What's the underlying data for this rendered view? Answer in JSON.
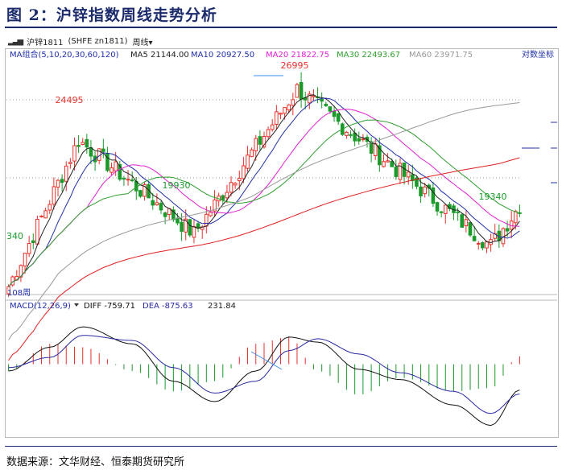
{
  "figure_title": "图 2：沪锌指数周线走势分析",
  "toolbar": {
    "icon": "bars-icon",
    "instrument": "沪锌1811",
    "contract": "(SHFE zn1811)",
    "period": "周线"
  },
  "source_note": "数据来源：文华财经、恒泰期货研究所",
  "colors": {
    "bg": "#ffffff",
    "up": "#e8322c",
    "down": "#1a9a2a",
    "ma5": "#222222",
    "ma10": "#1f2fa8",
    "ma20": "#e020d0",
    "ma30": "#2e9e2e",
    "ma60": "#999999",
    "ma120": "#e02020",
    "diff": "#111111",
    "dea": "#2a2aa0",
    "title": "#1b2a6b",
    "grid": "#999999"
  },
  "chart_data": [
    {
      "type": "candlestick",
      "legend_label": "MA组合(5,10,20,30,60,120)",
      "series": [
        {
          "name": "MA5",
          "value": "21144.00",
          "color": "#222222"
        },
        {
          "name": "MA10",
          "value": "20927.50",
          "color": "#1f2fa8"
        },
        {
          "name": "MA20",
          "value": "21822.75",
          "color": "#e020d0"
        },
        {
          "name": "MA30",
          "value": "22493.67",
          "color": "#2e9e2e"
        },
        {
          "name": "MA60",
          "value": "23971.75",
          "color": "#999999"
        }
      ],
      "scale_label": "对数坐标",
      "bar_count_label": "108周",
      "annotations": [
        {
          "text": "24495",
          "kind": "high"
        },
        {
          "text": "26995",
          "kind": "high"
        },
        {
          "text": "19930",
          "kind": "low"
        },
        {
          "text": "19340",
          "kind": "low"
        },
        {
          "text": "340",
          "kind": "low-left"
        }
      ],
      "ylim": [
        17500,
        28200
      ],
      "key_points": [
        {
          "x": 0,
          "y": 17340
        },
        {
          "x": 17,
          "y": 24495
        },
        {
          "x": 45,
          "y": 19930
        },
        {
          "x": 70,
          "y": 26995
        },
        {
          "x": 117,
          "y": 19340
        },
        {
          "x": 124,
          "y": 21300
        }
      ]
    },
    {
      "type": "line",
      "legend_label": "MACD(12,26,9)",
      "series": [
        {
          "name": "DIFF",
          "value": "-759.71",
          "color": "#111111"
        },
        {
          "name": "DEA",
          "value": "-875.63",
          "color": "#2a2aa0"
        },
        {
          "name": "MACD",
          "value": "231.84",
          "color": "#e8322c"
        }
      ],
      "x": [
        0,
        10,
        18,
        30,
        40,
        50,
        60,
        68,
        75,
        85,
        95,
        108,
        117,
        124
      ],
      "diff": [
        -200,
        500,
        1100,
        600,
        -500,
        -1100,
        -200,
        800,
        650,
        -150,
        -450,
        -1200,
        -1800,
        -760
      ],
      "dea": [
        -100,
        200,
        850,
        700,
        -100,
        -850,
        -500,
        400,
        750,
        300,
        -250,
        -800,
        -1450,
        -876
      ],
      "ylim": [
        -2000,
        1600
      ]
    }
  ]
}
